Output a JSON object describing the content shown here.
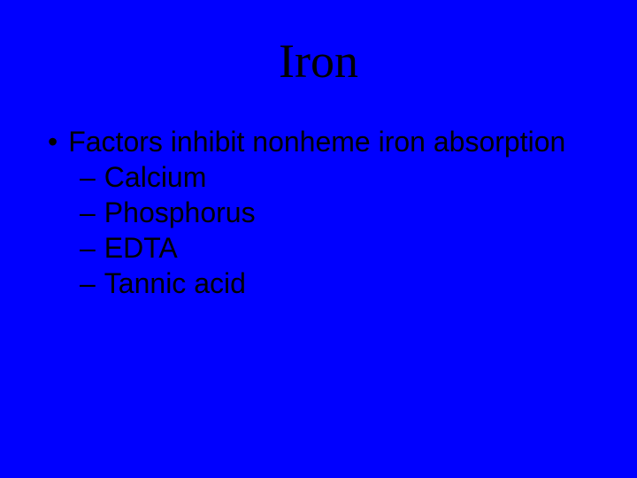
{
  "slide": {
    "background_color": "#0000ff",
    "text_color": "#000000",
    "title": {
      "text": "Iron",
      "fontsize": 54,
      "font_family": "Georgia, 'Times New Roman', serif",
      "font_weight": "400"
    },
    "body": {
      "fontsize": 32,
      "font_family": "Verdana, Geneva, sans-serif",
      "bullet": {
        "marker": "•",
        "text": "Factors inhibit nonheme iron absorption"
      },
      "subitems": [
        {
          "marker": "–",
          "text": "Calcium"
        },
        {
          "marker": "–",
          "text": "Phosphorus"
        },
        {
          "marker": "–",
          "text": "EDTA"
        },
        {
          "marker": "–",
          "text": "Tannic acid"
        }
      ]
    }
  }
}
